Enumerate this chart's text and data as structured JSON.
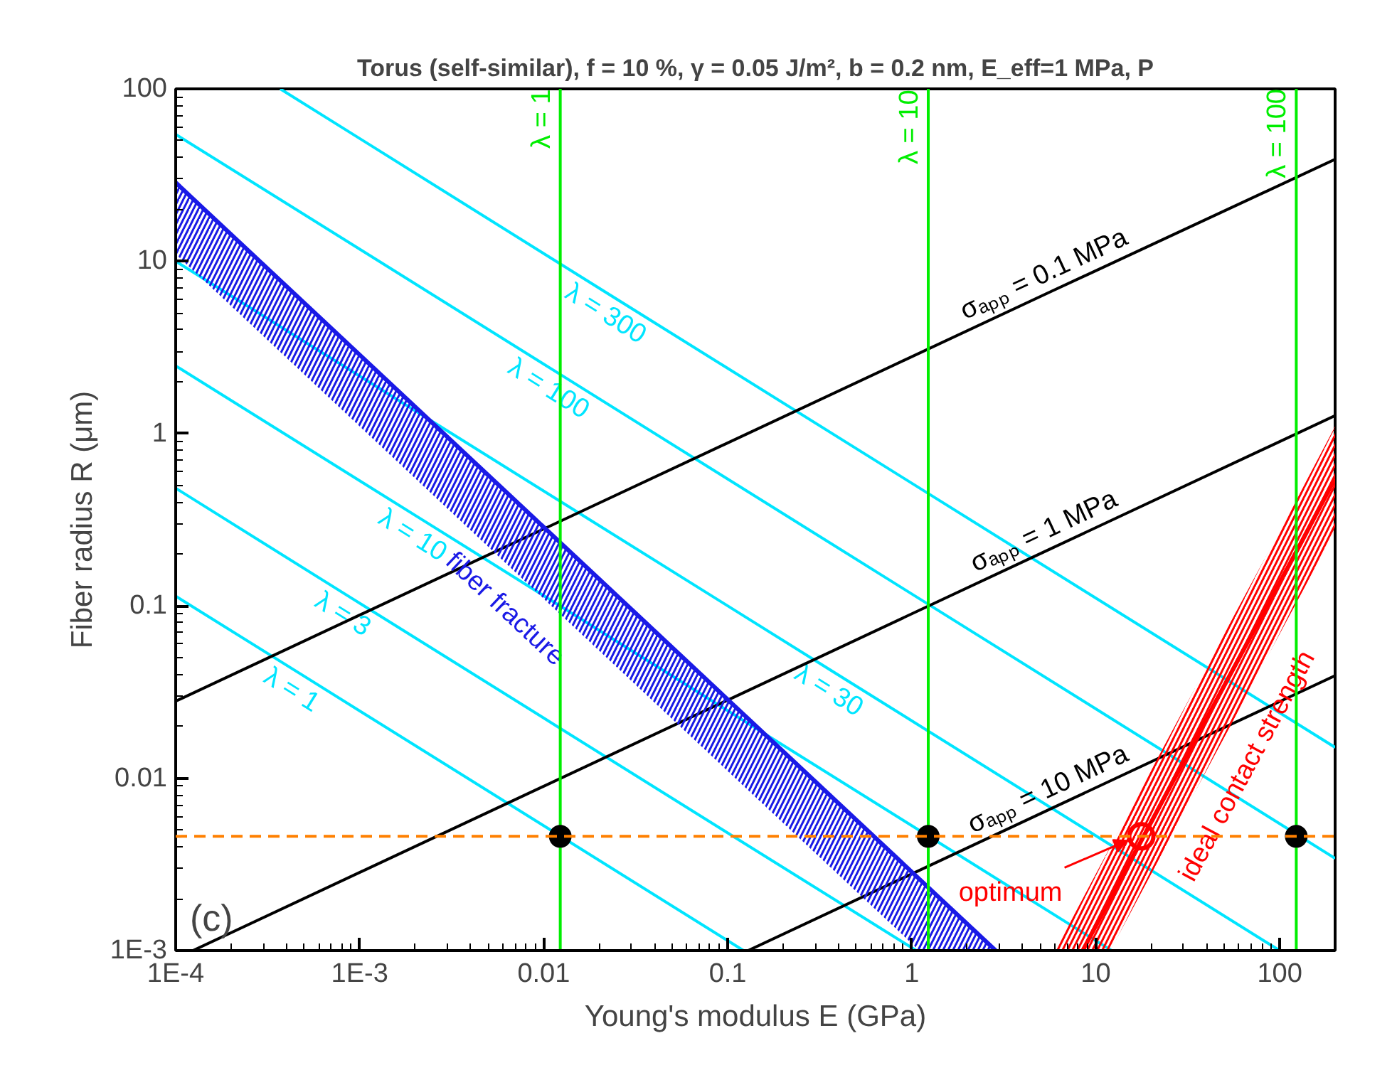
{
  "chart_data": {
    "type": "line",
    "title": "Torus (self-similar), f = 10 %, γ = 0.05 J/m², b = 0.2 nm, E_eff=1 MPa, P",
    "xlabel": "Young's modulus E (GPa)",
    "ylabel": "Fiber radius R (μm)",
    "log": "xy",
    "xlim": [
      0.0001,
      200
    ],
    "ylim": [
      0.001,
      100
    ],
    "xticks": [
      {
        "value": 0.0001,
        "label": "1E-4"
      },
      {
        "value": 0.001,
        "label": "1E-3"
      },
      0.01,
      0.1,
      1,
      10,
      100
    ],
    "yticks": [
      {
        "value": 0.001,
        "label": "1E-3"
      },
      0.01,
      0.1,
      1,
      10,
      100
    ],
    "series": [
      {
        "name": "λ = 300",
        "color": "#00e5ff",
        "x": [
          0.00037,
          0.0245,
          200
        ],
        "values": [
          100,
          6.1,
          0.0151
        ]
      },
      {
        "name": "λ = 100",
        "color": "#00e5ff",
        "x": [
          0.0001,
          0.012,
          200
        ],
        "values": [
          54.5,
          2.24,
          0.00343
        ]
      },
      {
        "name": "λ = 30",
        "color": "#00e5ff",
        "x": [
          0.0001,
          0.4,
          100
        ],
        "values": [
          10,
          0.0397,
          0.001
        ]
      },
      {
        "name": "λ = 10",
        "color": "#00e5ff",
        "x": [
          0.0001,
          0.00219,
          12.2
        ],
        "values": [
          2.47,
          0.316,
          0.001
        ]
      },
      {
        "name": "λ = 3",
        "color": "#00e5ff",
        "x": [
          0.0001,
          0.000914,
          1.06
        ],
        "values": [
          0.482,
          0.11,
          0.001
        ]
      },
      {
        "name": "λ = 1",
        "color": "#00e5ff",
        "x": [
          0.0001,
          0.000482,
          0.122
        ],
        "values": [
          0.114,
          0.04,
          0.001
        ]
      },
      {
        "name": "σₐₚₚ = 0.1 MPa",
        "color": "#000000",
        "x": [
          0.0001,
          5.77,
          200
        ],
        "values": [
          0.028,
          6.7,
          39
        ]
      },
      {
        "name": "σₐₚₚ = 1 MPa",
        "color": "#000000",
        "x": [
          0.000124,
          5.77,
          200
        ],
        "values": [
          0.001,
          0.216,
          1.27
        ]
      },
      {
        "name": "σₐₚₚ = 10 MPa",
        "color": "#000000",
        "x": [
          0.129,
          6.08,
          200
        ],
        "values": [
          0.001,
          0.00687,
          0.0394
        ]
      },
      {
        "name": "fiber fracture",
        "color": "#1a1ae6",
        "x": [
          0.0001,
          0.001,
          0.0129,
          1.1,
          2.86
        ],
        "values": [
          28.6,
          2.86,
          0.222,
          0.0026,
          0.001
        ],
        "lower": [
          11,
          1.1,
          0.0853,
          0.001,
          0.001
        ],
        "upper": [
          28.6,
          2.86,
          0.222,
          0.0026,
          0.001
        ]
      },
      {
        "name": "ideal contact strength",
        "color": "#ff0000",
        "x": [
          6.0,
          8.5,
          12,
          35,
          130,
          200
        ],
        "values": [
          null,
          0.001,
          0.002,
          0.017,
          0.23,
          0.55
        ],
        "lower": [
          0.001,
          0.001,
          0.001,
          0.0085,
          0.116,
          0.275
        ],
        "upper": [
          0.001,
          0.002,
          0.004,
          0.034,
          0.46,
          1.1
        ]
      },
      {
        "name": "λ = 1",
        "color": "#00ee00",
        "x": [
          0.0123,
          0.0123,
          0.0123
        ],
        "values": [
          0.001,
          67,
          100
        ]
      },
      {
        "name": "λ = 10",
        "color": "#00ee00",
        "x": [
          1.23,
          1.23,
          1.23
        ],
        "values": [
          0.001,
          60,
          100
        ]
      },
      {
        "name": "λ = 100",
        "color": "#00ee00",
        "x": [
          123,
          123,
          123
        ],
        "values": [
          0.001,
          55,
          100
        ]
      },
      {
        "type": "scatter",
        "marker": "circle",
        "color": "#000000",
        "x": [
          0.0123,
          1.23,
          123
        ],
        "values": [
          0.0046,
          0.0046,
          0.0046
        ]
      },
      {
        "type": "scatter",
        "marker": "circle",
        "name": "optimum",
        "color": "#ff0000",
        "x": [
          17.7
        ],
        "values": [
          0.0046
        ]
      }
    ],
    "ref_lines": [
      {
        "axis": "y",
        "value": 0.0046,
        "color": "#ff8000",
        "line_style": "dashed"
      }
    ],
    "annotations": [
      "(c)"
    ]
  }
}
